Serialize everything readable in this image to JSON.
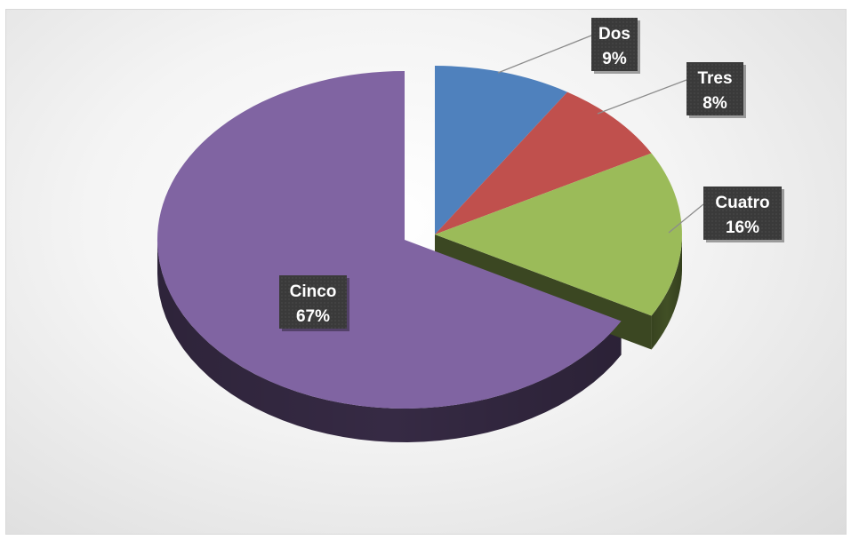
{
  "chart_data": {
    "type": "pie",
    "style": "3d-exploded",
    "categories": [
      "Dos",
      "Tres",
      "Cuatro",
      "Cinco"
    ],
    "values": [
      9,
      8,
      16,
      67
    ],
    "data_labels": [
      "9%",
      "8%",
      "16%",
      "67%"
    ],
    "colors": [
      "#4f81bd",
      "#c0504d",
      "#9bbb59",
      "#8064a2"
    ],
    "title": "",
    "legend": "none",
    "label_box_color": "#3a3a3a"
  }
}
